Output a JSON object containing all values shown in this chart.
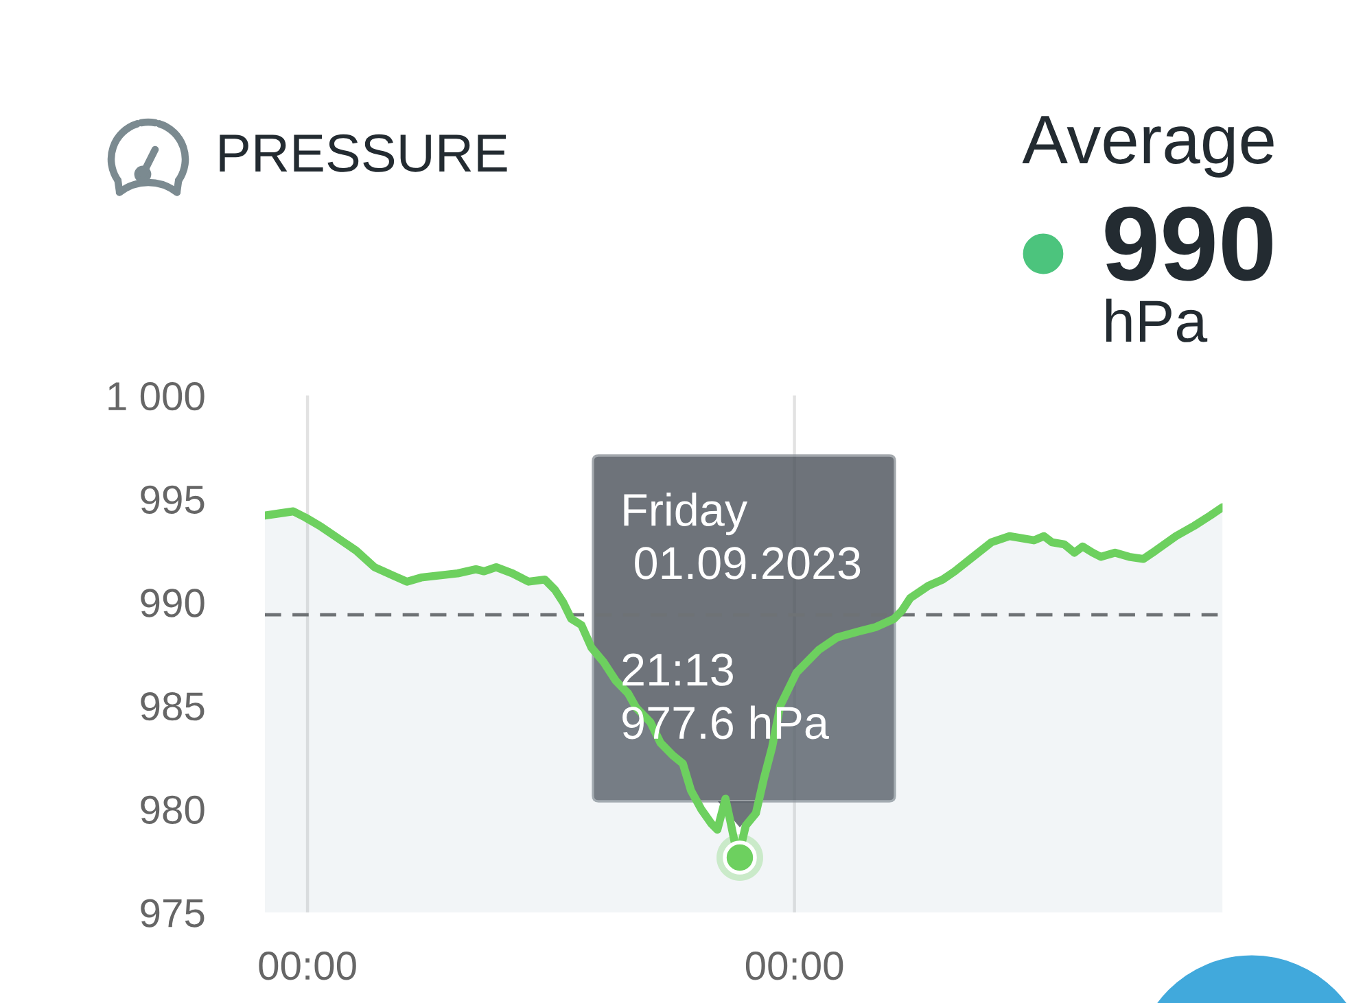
{
  "chart_data": {
    "type": "area",
    "title": "PRESSURE",
    "x": [
      -2.1,
      -1.4,
      -0.7,
      -0.1,
      0.6,
      1.5,
      2.4,
      3.3,
      4.2,
      4.9,
      5.6,
      6.5,
      7.4,
      8.3,
      8.7,
      9.3,
      10.1,
      10.9,
      11.7,
      12.2,
      12.6,
      13.0,
      13.5,
      14.0,
      14.6,
      15.2,
      15.8,
      16.2,
      16.9,
      17.4,
      18.0,
      18.5,
      18.9,
      19.4,
      19.9,
      20.2,
      20.6,
      20.8,
      21.22,
      21.6,
      22.1,
      22.5,
      22.9,
      23.3,
      23.7,
      24.1,
      25.2,
      26.1,
      27.2,
      28.0,
      28.9,
      29.3,
      29.7,
      30.6,
      31.3,
      31.9,
      32.8,
      33.7,
      34.6,
      35.2,
      35.8,
      36.3,
      36.7,
      37.3,
      37.8,
      38.2,
      38.7,
      39.1,
      39.8,
      40.5,
      41.2,
      41.8,
      42.8,
      43.7,
      44.5,
      45.1
    ],
    "series": [
      {
        "color": "#6dd05f",
        "values": [
          994.2,
          994.3,
          994.4,
          994.1,
          993.7,
          993.1,
          992.5,
          991.7,
          991.3,
          991.0,
          991.2,
          991.3,
          991.4,
          991.6,
          991.5,
          991.7,
          991.4,
          991.0,
          991.1,
          990.6,
          990.0,
          989.2,
          988.9,
          987.8,
          987.1,
          986.2,
          985.6,
          984.9,
          984.2,
          983.2,
          982.6,
          982.2,
          980.9,
          980.0,
          979.3,
          979.0,
          980.5,
          979.6,
          977.6,
          979.2,
          979.8,
          981.5,
          983.0,
          985.0,
          985.8,
          986.6,
          987.7,
          988.3,
          988.6,
          988.8,
          989.2,
          989.6,
          990.2,
          990.8,
          991.1,
          991.5,
          992.2,
          992.9,
          993.2,
          993.1,
          993.0,
          993.2,
          992.9,
          992.8,
          992.4,
          992.7,
          992.4,
          992.2,
          992.4,
          992.2,
          992.1,
          992.5,
          993.2,
          993.7,
          994.2,
          994.6
        ]
      }
    ],
    "xlim": [
      -2.1,
      45.1
    ],
    "xticks": [
      {
        "value": 0,
        "label": "00:00"
      },
      {
        "value": 24,
        "label": "00:00"
      }
    ],
    "ylim": [
      975,
      1000
    ],
    "yticks": [
      975,
      980,
      985,
      990,
      995,
      {
        "value": 1000,
        "label": "1 000"
      }
    ],
    "grid": "x",
    "ref_lines": [
      {
        "axis": "y",
        "value": 989.4,
        "color": "#6e7275",
        "line_style": "dashed"
      }
    ],
    "annotations": [
      "Average",
      "990",
      "hPa",
      "Friday\n 01.09.2023\n\n21:13\n977.6 hPa"
    ]
  }
}
